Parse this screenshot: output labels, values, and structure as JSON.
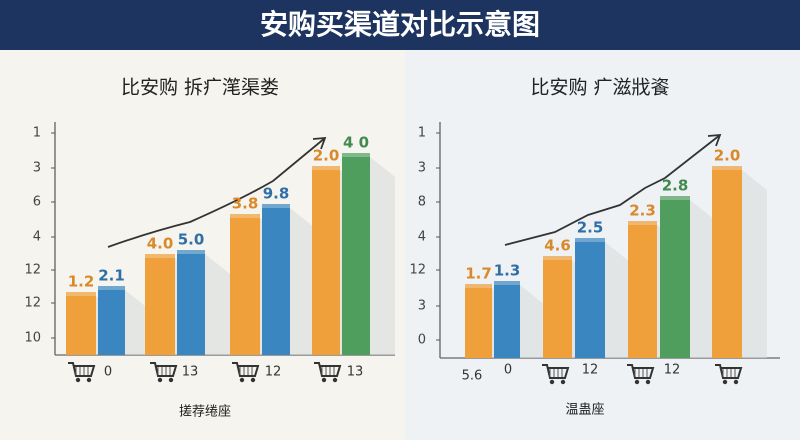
{
  "header": {
    "title": "安购买渠道对比示意图"
  },
  "panels": [
    {
      "title": "比安购 拆疒滗渠娄",
      "y_labels": [
        "1",
        "3",
        "6",
        "4",
        "12",
        "12",
        "10"
      ],
      "bar_labels": [
        "1.2",
        "2.1",
        "4.0",
        "5.0",
        "3.8",
        "9.8",
        "2.0",
        "4 0"
      ],
      "x_labels": [
        "0",
        "13",
        "12",
        "13"
      ],
      "footer": "搓荐绻座"
    },
    {
      "title": "比安购 疒滋戕餈",
      "y_labels": [
        "1",
        "3",
        "8",
        "4",
        "12",
        "3",
        "0"
      ],
      "bar_labels": [
        "1.7",
        "1.3",
        "4.6",
        "2.5",
        "2.3",
        "2.8",
        "2.0"
      ],
      "x_labels": [
        "5.6",
        "0",
        "12",
        "12"
      ],
      "footer": "温蛊座"
    }
  ]
}
